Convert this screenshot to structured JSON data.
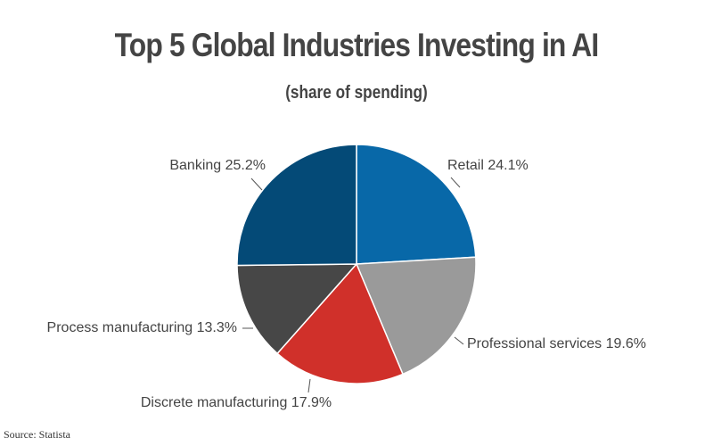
{
  "chart_data": {
    "type": "pie",
    "title": "Top 5 Global Industries Investing in AI",
    "subtitle": "(share of spending)",
    "categories": [
      "Retail",
      "Professional services",
      "Discrete manufacturing",
      "Process manufacturing",
      "Banking"
    ],
    "values": [
      24.1,
      19.6,
      17.9,
      13.3,
      25.2
    ],
    "unit": "%",
    "colors": [
      "#0868A8",
      "#9A9A9A",
      "#D0302A",
      "#474747",
      "#044A77"
    ],
    "labels": [
      "Retail 24.1%",
      "Professional services 19.6%",
      "Discrete manufacturing 17.9%",
      "Process manufacturing 13.3%",
      "Banking 25.2%"
    ],
    "start_angle": "12 o'clock, clockwise",
    "legend": "none (direct labels with leader lines)"
  },
  "source": "Source: Statista"
}
